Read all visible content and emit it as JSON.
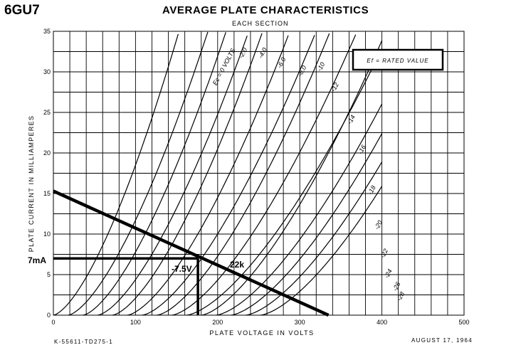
{
  "tube": "6GU7",
  "title": "AVERAGE PLATE CHARACTERISTICS",
  "subtitle": "EACH SECTION",
  "footer_left": "K-55611-TD275-1",
  "footer_right": "AUGUST 17, 1964",
  "ef_note": "Ef = RATED VALUE",
  "annotations": {
    "operating_current": "7mA",
    "operating_grid": "-7.5V",
    "load_line": "22k"
  },
  "chart_data": {
    "type": "line",
    "title": "AVERAGE PLATE CHARACTERISTICS",
    "subtitle": "EACH SECTION",
    "xlabel": "PLATE VOLTAGE IN VOLTS",
    "ylabel": "PLATE CURRENT IN MILLIAMPERES",
    "xlim": [
      0,
      500
    ],
    "ylim": [
      0,
      35
    ],
    "x_ticks": [
      0,
      100,
      200,
      300,
      400,
      500
    ],
    "x_tick_labels": [
      "0",
      "100",
      "200",
      "300",
      "400",
      "500"
    ],
    "y_ticks": [
      0,
      5,
      10,
      15,
      20,
      25,
      30,
      35
    ],
    "y_tick_labels": [
      "0",
      "5",
      "10",
      "15",
      "20",
      "25",
      "30",
      "35"
    ],
    "grid": true,
    "curve_shape": {
      "exponent": 1.5,
      "description": "plate current rises as a power of plate voltage beyond the grid-bias offset"
    },
    "series": [
      {
        "name": "Ec = 0 VOLTS",
        "label": "Ec = 0 VOLTS",
        "x": [
          0,
          100,
          160
        ],
        "y": [
          0,
          18.5,
          35
        ]
      },
      {
        "name": "-2.0",
        "label": "-2.0",
        "x": [
          18,
          100,
          200
        ],
        "y": [
          0,
          11.7,
          35
        ]
      },
      {
        "name": "-4.0",
        "label": "-4.0",
        "x": [
          36,
          150,
          230
        ],
        "y": [
          0,
          18.5,
          35
        ]
      },
      {
        "name": "-6.0",
        "label": "-6.0",
        "x": [
          54,
          150,
          255
        ],
        "y": [
          0,
          13.2,
          35
        ]
      },
      {
        "name": "-8.0",
        "label": "-8.0",
        "x": [
          72,
          200,
          285
        ],
        "y": [
          0,
          20.5,
          35
        ]
      },
      {
        "name": "-10",
        "label": "-10",
        "x": [
          90,
          200,
          310
        ],
        "y": [
          0,
          14.5,
          35
        ]
      },
      {
        "name": "-12",
        "label": "-12",
        "x": [
          108,
          250,
          350
        ],
        "y": [
          0,
          19.2,
          35
        ]
      },
      {
        "name": "-14",
        "label": "-14",
        "x": [
          126,
          300,
          378
        ],
        "y": [
          0,
          26.2,
          35
        ]
      },
      {
        "name": "-16",
        "label": "-16",
        "x": [
          144,
          300,
          393
        ],
        "y": [
          0,
          20.1,
          35
        ]
      },
      {
        "name": "-18",
        "label": "-18",
        "x": [
          162,
          300,
          400
        ],
        "y": [
          0,
          14.5,
          35
        ]
      },
      {
        "name": "-20",
        "label": "-20",
        "x": [
          180,
          350,
          400
        ],
        "y": [
          0,
          23.0,
          35
        ]
      },
      {
        "name": "-22",
        "label": "-22",
        "x": [
          198,
          350,
          400
        ],
        "y": [
          0,
          17.0,
          35
        ]
      },
      {
        "name": "-24",
        "label": "-24",
        "x": [
          216,
          400,
          400
        ],
        "y": [
          0,
          22.4,
          35
        ]
      },
      {
        "name": "-26",
        "label": "-26",
        "x": [
          234,
          400,
          400
        ],
        "y": [
          0,
          18.9,
          35
        ]
      },
      {
        "name": "-28",
        "label": "-28",
        "x": [
          252,
          400,
          400
        ],
        "y": [
          0,
          15.9,
          35
        ]
      }
    ],
    "curve_label_positions": [
      {
        "label": "Ec = 0 VOLTS",
        "x": 210,
        "y": 30.5
      },
      {
        "label": "-2.0",
        "x": 233,
        "y": 32.2
      },
      {
        "label": "-4.0",
        "x": 257,
        "y": 32.2
      },
      {
        "label": "-6.0",
        "x": 280,
        "y": 31.0
      },
      {
        "label": "-8.0",
        "x": 305,
        "y": 30.0
      },
      {
        "label": "-10",
        "x": 328,
        "y": 30.5
      },
      {
        "label": "-12",
        "x": 345,
        "y": 28.0
      },
      {
        "label": "-14",
        "x": 365,
        "y": 24.0
      },
      {
        "label": "-16",
        "x": 378,
        "y": 20.3
      },
      {
        "label": "-18",
        "x": 390,
        "y": 15.3
      },
      {
        "label": "-20",
        "x": 398,
        "y": 11.0
      },
      {
        "label": "-22",
        "x": 405,
        "y": 7.5
      },
      {
        "label": "-24",
        "x": 410,
        "y": 5.0
      },
      {
        "label": "-26",
        "x": 420,
        "y": 3.4
      },
      {
        "label": "-28",
        "x": 425,
        "y": 2.2
      }
    ],
    "load_line": {
      "label": "22k",
      "x": [
        0,
        335
      ],
      "y": [
        15.3,
        0
      ]
    },
    "operating_point": {
      "x": 176,
      "y": 7.0,
      "current_label": "7mA",
      "grid_label": "-7.5V"
    }
  }
}
